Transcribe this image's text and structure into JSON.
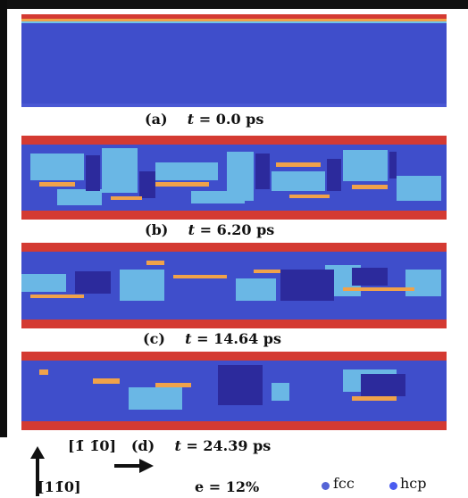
{
  "panels": [
    {
      "label": "(a)",
      "time": "0.0 ps"
    },
    {
      "label": "(b)",
      "time": "6.20 ps"
    },
    {
      "label": "(c)",
      "time": "14.64 ps"
    },
    {
      "label": "(d)",
      "time": "24.39 ps"
    }
  ],
  "time_var": "t =",
  "directions": {
    "horizontal": "[1̄ 1̄0]",
    "vertical": "[11̄0]"
  },
  "strain": "e  = 12%",
  "legend": {
    "fcc_label": "fcc",
    "hcp_label": "hcp",
    "fcc_color": "#5564d6",
    "hcp_color": "#4a5cf0"
  },
  "colors": {
    "matrix": "#3f4ecb",
    "dark_domain": "#2c2a9c",
    "cyan": "#6fc3e8",
    "orange": "#f0a24a",
    "surface_red": "#d43a32"
  }
}
